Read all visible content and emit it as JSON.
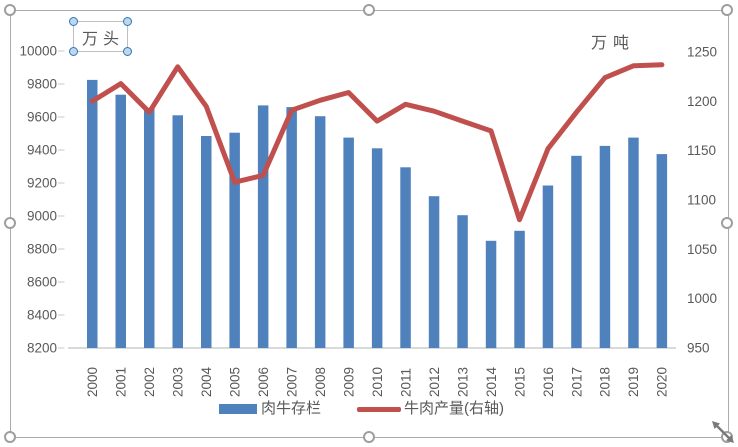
{
  "chart": {
    "unit_left_label": "万头",
    "unit_right_label": "万吨",
    "legend": [
      {
        "label": "肉牛存栏",
        "marker": "bar",
        "color": "#4F81BD"
      },
      {
        "label": "牛肉产量(右轴)",
        "marker": "line",
        "color": "#C0504D"
      }
    ]
  },
  "chart_data": {
    "type": "combo-bar-line",
    "title": "",
    "categories": [
      "2000",
      "2001",
      "2002",
      "2003",
      "2004",
      "2005",
      "2006",
      "2007",
      "2008",
      "2009",
      "2010",
      "2011",
      "2012",
      "2013",
      "2014",
      "2015",
      "2016",
      "2017",
      "2018",
      "2019",
      "2020"
    ],
    "series": [
      {
        "name": "肉牛存栏",
        "type": "bar",
        "axis": "left",
        "unit": "万头",
        "color": "#4F81BD",
        "values": [
          9825,
          9735,
          9655,
          9610,
          9485,
          9505,
          9670,
          9660,
          9605,
          9475,
          9410,
          9295,
          9120,
          9005,
          8850,
          8910,
          9185,
          9365,
          9425,
          9475,
          9375
        ]
      },
      {
        "name": "牛肉产量(右轴)",
        "type": "line",
        "axis": "right",
        "unit": "万吨",
        "color": "#C0504D",
        "values": [
          1200,
          1218,
          1189,
          1235,
          1195,
          1118,
          1125,
          1191,
          1201,
          1209,
          1180,
          1197,
          1190,
          1180,
          1170,
          1080,
          1152,
          1189,
          1224,
          1236,
          1237
        ]
      }
    ],
    "left_axis": {
      "title": "万头",
      "min": 8200,
      "max": 10000,
      "step": 200,
      "ticks": [
        10000,
        9800,
        9600,
        9400,
        9200,
        9000,
        8800,
        8600,
        8400,
        8200
      ]
    },
    "right_axis": {
      "title": "万吨",
      "min": 950,
      "max": 1250,
      "step": 50,
      "ticks": [
        1250,
        1200,
        1150,
        1100,
        1050,
        1000,
        950
      ]
    },
    "grid": "off",
    "legend_position": "bottom",
    "text_color": "#595959",
    "baseline_color": "#d9d9d9"
  }
}
